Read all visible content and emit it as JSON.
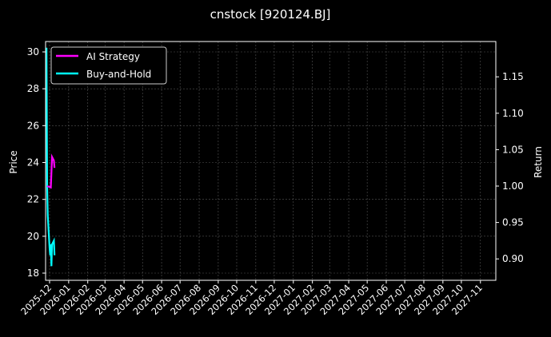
{
  "chart_data": {
    "type": "line",
    "title": "cnstock [920124.BJ]",
    "ylabel_left": "Price",
    "ylabel_right": "Return",
    "xlabel": "",
    "ylim_left": [
      17.6,
      30.5
    ],
    "ylim_right": [
      0.87,
      1.195
    ],
    "yticks_left": [
      "18",
      "20",
      "22",
      "24",
      "26",
      "28",
      "30"
    ],
    "yticks_right": [
      "0.90",
      "0.95",
      "1.00",
      "1.05",
      "1.10",
      "1.15"
    ],
    "xticks": [
      "2025-12",
      "2026-01",
      "2026-02",
      "2026-03",
      "2026-04",
      "2026-05",
      "2026-06",
      "2026-07",
      "2026-08",
      "2026-09",
      "2026-10",
      "2026-11",
      "2026-12",
      "2027-01",
      "2027-02",
      "2027-03",
      "2027-04",
      "2027-05",
      "2027-06",
      "2027-07",
      "2027-08",
      "2027-09",
      "2027-10",
      "2027-11"
    ],
    "grid": true,
    "legend": "top-left",
    "series": [
      {
        "name": "AI Strategy",
        "color": "#ff00ff",
        "axis": "right",
        "x": [
          "2025-11-27",
          "2025-12-03",
          "2025-12-05",
          "2025-12-08",
          "2025-12-09"
        ],
        "y": [
          1.0,
          0.998,
          1.04,
          1.035,
          1.025
        ]
      },
      {
        "name": "Buy-and-Hold",
        "color": "#00ffff",
        "axis": "right",
        "x": [
          "2025-11-26",
          "2025-11-27",
          "2025-11-28",
          "2025-12-01",
          "2025-12-02",
          "2025-12-03",
          "2025-12-04",
          "2025-12-05",
          "2025-12-08",
          "2025-12-09"
        ],
        "y": [
          1.19,
          1.0,
          0.96,
          0.915,
          0.905,
          0.92,
          0.89,
          0.92,
          0.925,
          0.905
        ]
      }
    ]
  }
}
